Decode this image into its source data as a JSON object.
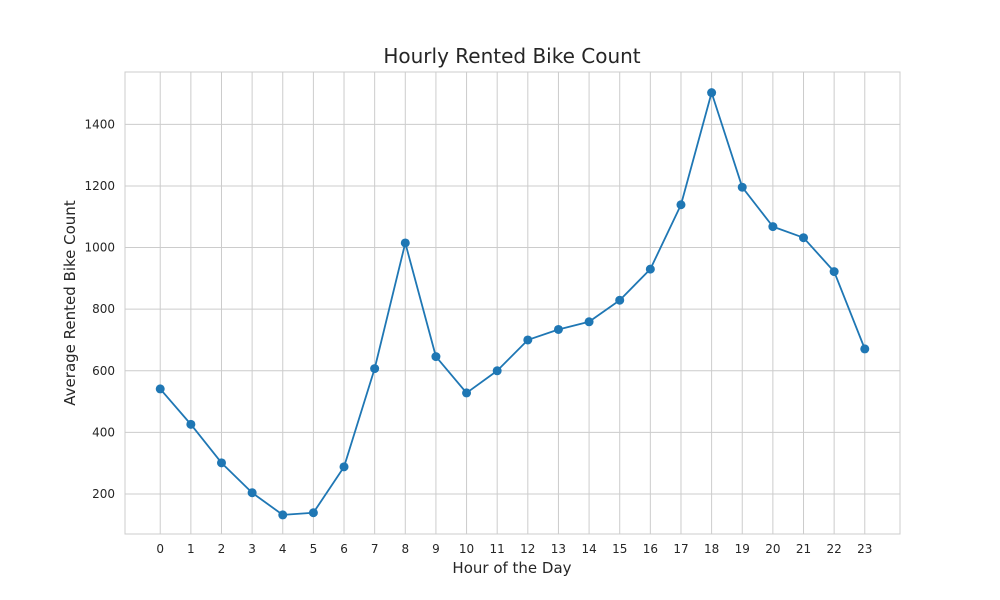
{
  "chart_data": {
    "type": "line",
    "title": "Hourly Rented Bike Count",
    "xlabel": "Hour of the Day",
    "ylabel": "Average Rented Bike Count",
    "x": [
      0,
      1,
      2,
      3,
      4,
      5,
      6,
      7,
      8,
      9,
      10,
      11,
      12,
      13,
      14,
      15,
      16,
      17,
      18,
      19,
      20,
      21,
      22,
      23
    ],
    "series": [
      {
        "values": [
          541,
          426,
          301,
          204,
          132,
          139,
          288,
          607,
          1015,
          646,
          528,
          600,
          700,
          734,
          759,
          829,
          930,
          1139,
          1503,
          1196,
          1068,
          1032,
          922,
          671
        ]
      }
    ],
    "yticks": [
      200,
      400,
      600,
      800,
      1000,
      1200,
      1400
    ],
    "ylim": [
      70,
      1570
    ],
    "xlim": [
      -1.15,
      24.15
    ],
    "grid": true,
    "line_color": "#1f77b4",
    "marker": "circle"
  }
}
